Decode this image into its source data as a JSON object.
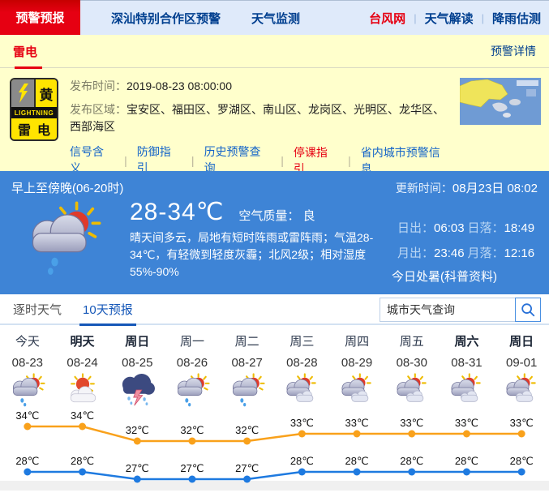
{
  "topnav": {
    "active_tab": "预警预报",
    "items": [
      "深汕特别合作区预警",
      "天气监测"
    ],
    "right_links": [
      {
        "label": "台风网",
        "color": "#e60012"
      },
      {
        "label": "天气解读",
        "color": "#003f8f"
      },
      {
        "label": "降雨估测",
        "color": "#003f8f"
      }
    ]
  },
  "warning_bar": {
    "title": "雷电",
    "detail_link": "预警详情"
  },
  "warning": {
    "sign": {
      "grade_char": "黄",
      "band": "LIGHTNING",
      "type": "雷电"
    },
    "publish_time_label": "发布时间：",
    "publish_time": "2019-08-23 08:00:00",
    "area_label": "发布区域：",
    "area": "宝安区、福田区、罗湖区、南山区、龙岗区、光明区、龙华区、西部海区",
    "links": [
      {
        "label": "信号含义"
      },
      {
        "label": "防御指引"
      },
      {
        "label": "历史预警查询"
      },
      {
        "label": "停课指引",
        "color": "#e60012"
      },
      {
        "label": "省内城市预警信息"
      }
    ]
  },
  "current": {
    "period": "早上至傍晚(06-20时)",
    "update_label": "更新时间：",
    "update_time": "08月23日 08:02",
    "temp_range": "28-34℃",
    "air_quality_label": "空气质量：",
    "air_quality": "良",
    "description": "晴天间多云，局地有短时阵雨或雷阵雨；气温28-34℃，有轻微到轻度灰霾；北风2级；相对湿度55%-90%",
    "sun_moon": [
      {
        "label": "日出：",
        "value": "06:03"
      },
      {
        "label": "日落：",
        "value": "18:49"
      },
      {
        "label": "月出：",
        "value": "23:46"
      },
      {
        "label": "月落：",
        "value": "12:16"
      }
    ],
    "solar_term": "今日处暑(科普资料)"
  },
  "tabs": [
    {
      "label": "逐时天气",
      "active": false
    },
    {
      "label": "10天预报",
      "active": true
    }
  ],
  "search": {
    "value": "城市天气查询"
  },
  "chart_data": {
    "type": "line",
    "title": "10天预报",
    "categories": [
      "今天",
      "明天",
      "周日",
      "周一",
      "周二",
      "周三",
      "周四",
      "周五",
      "周六",
      "周日"
    ],
    "dates": [
      "08-23",
      "08-24",
      "08-25",
      "08-26",
      "08-27",
      "08-28",
      "08-29",
      "08-30",
      "08-31",
      "09-01"
    ],
    "bold_weekend": [
      false,
      true,
      true,
      false,
      false,
      false,
      false,
      false,
      true,
      true
    ],
    "icons": [
      "shower-sun",
      "sun-cloud",
      "thunder",
      "shower-sun",
      "shower-sun",
      "clouds-sun",
      "clouds-sun",
      "clouds-sun",
      "clouds-sun",
      "clouds-sun"
    ],
    "series": [
      {
        "name": "high",
        "color": "#f9a11b",
        "values": [
          34,
          34,
          32,
          32,
          32,
          33,
          33,
          33,
          33,
          33
        ]
      },
      {
        "name": "low",
        "color": "#1e7ae0",
        "values": [
          28,
          28,
          27,
          27,
          27,
          28,
          28,
          28,
          28,
          28
        ]
      }
    ],
    "unit": "℃",
    "ylim": [
      27,
      34
    ],
    "legend": "none",
    "grid": false
  }
}
